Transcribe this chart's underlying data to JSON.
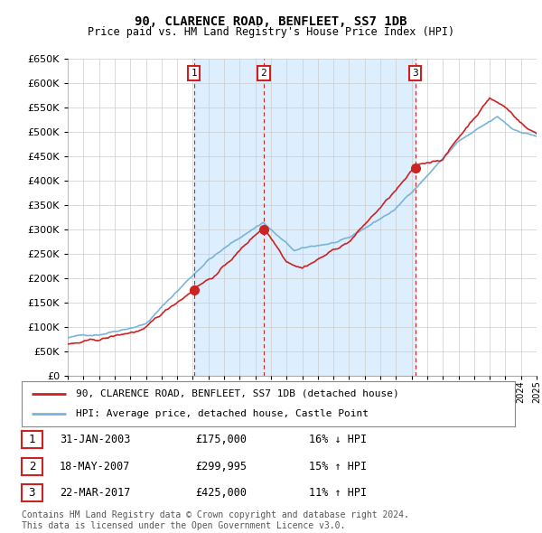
{
  "title": "90, CLARENCE ROAD, BENFLEET, SS7 1DB",
  "subtitle": "Price paid vs. HM Land Registry's House Price Index (HPI)",
  "ylim": [
    0,
    650000
  ],
  "ytick_values": [
    0,
    50000,
    100000,
    150000,
    200000,
    250000,
    300000,
    350000,
    400000,
    450000,
    500000,
    550000,
    600000,
    650000
  ],
  "x_start_year": 1995,
  "x_end_year": 2025,
  "hpi_color": "#7ab4d8",
  "price_color": "#cc2222",
  "shade_color": "#ddeeff",
  "purchases": [
    {
      "date_num": 2003.08,
      "price": 175000,
      "label": "1"
    },
    {
      "date_num": 2007.54,
      "price": 299995,
      "label": "2"
    },
    {
      "date_num": 2017.23,
      "price": 425000,
      "label": "3"
    }
  ],
  "legend_line1": "90, CLARENCE ROAD, BENFLEET, SS7 1DB (detached house)",
  "legend_line2": "HPI: Average price, detached house, Castle Point",
  "table_rows": [
    [
      "1",
      "31-JAN-2003",
      "£175,000",
      "16% ↓ HPI"
    ],
    [
      "2",
      "18-MAY-2007",
      "£299,995",
      "15% ↑ HPI"
    ],
    [
      "3",
      "22-MAR-2017",
      "£425,000",
      "11% ↑ HPI"
    ]
  ],
  "footer": "Contains HM Land Registry data © Crown copyright and database right 2024.\nThis data is licensed under the Open Government Licence v3.0.",
  "background_color": "#ffffff",
  "grid_color": "#cccccc",
  "vline_color": "#cc2222",
  "vline_dates": [
    2003.08,
    2007.54,
    2017.23
  ]
}
